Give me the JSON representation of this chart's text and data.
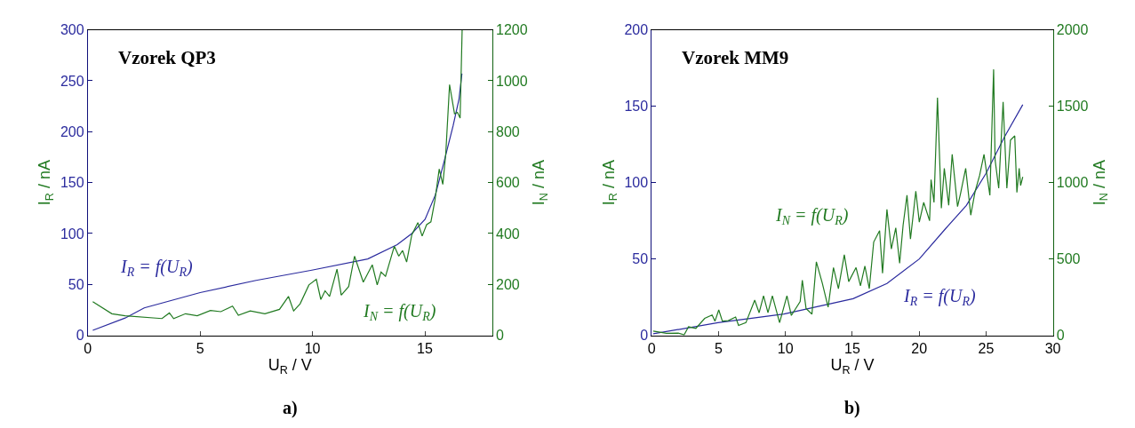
{
  "chart_data": [
    {
      "type": "line",
      "title": "Vzorek QP3",
      "xlabel": "U$_{R}$ / V",
      "ylabel": "I$_{R}$ / nA",
      "y2label": "I$_{N}$ / nA",
      "xlim": [
        0,
        18
      ],
      "xticks": [
        0,
        5,
        10,
        15
      ],
      "ylim": [
        0,
        300
      ],
      "yticks": [
        0,
        50,
        100,
        150,
        200,
        250,
        300
      ],
      "y2lim": [
        0,
        1200
      ],
      "y2ticks": [
        0,
        200,
        400,
        600,
        800,
        1000,
        1200
      ],
      "series": [
        {
          "name": "I$_{R}$ = f(U$_{R}$)",
          "color": "#2b2b9e",
          "x": [
            0.22,
            1.66,
            2.51,
            5.0,
            7.49,
            9.97,
            12.46,
            13.77,
            14.42,
            15.01,
            15.47,
            15.86,
            16.26,
            16.52,
            16.65
          ],
          "values": [
            5,
            17,
            27,
            42,
            54,
            64,
            75,
            89,
            100,
            114,
            138,
            171,
            206,
            232,
            257
          ]
        },
        {
          "name": "I$_{N}$ = f(U$_{R}$)",
          "color": "#217a21",
          "axis": "y2",
          "x": [
            0.22,
            1.07,
            1.66,
            3.3,
            3.63,
            3.82,
            4.35,
            4.87,
            5.46,
            5.92,
            6.44,
            6.7,
            7.23,
            7.88,
            8.53,
            8.93,
            9.16,
            9.45,
            9.84,
            10.17,
            10.37,
            10.56,
            10.76,
            11.09,
            11.28,
            11.61,
            11.87,
            12.26,
            12.66,
            12.88,
            13.05,
            13.25,
            13.64,
            13.84,
            14.01,
            14.19,
            14.42,
            14.69,
            14.88,
            15.08,
            15.27,
            15.45,
            15.64,
            15.8,
            15.93,
            16.1,
            16.32,
            16.45,
            16.57,
            16.66
          ],
          "values": [
            132,
            85,
            77,
            66,
            88,
            66,
            85,
            77,
            98,
            93,
            115,
            79,
            96,
            85,
            102,
            153,
            96,
            124,
            198,
            220,
            141,
            175,
            153,
            260,
            158,
            192,
            311,
            209,
            277,
            198,
            249,
            232,
            350,
            311,
            333,
            288,
            395,
            443,
            390,
            435,
            446,
            531,
            653,
            593,
            712,
            985,
            870,
            876,
            853,
            1200
          ]
        }
      ],
      "annotations": [
        "a)"
      ]
    },
    {
      "type": "line",
      "title": "Vzorek MM9",
      "xlabel": "U$_{R}$ / V",
      "ylabel": "I$_{R}$ / nA",
      "y2label": "I$_{N}$ / nA",
      "xlim": [
        0,
        30
      ],
      "xticks": [
        0,
        5,
        10,
        15,
        20,
        25,
        30
      ],
      "ylim": [
        0,
        200
      ],
      "yticks": [
        0,
        50,
        100,
        150,
        200
      ],
      "y2lim": [
        0,
        2000
      ],
      "y2ticks": [
        0,
        500,
        1000,
        1500,
        2000
      ],
      "series": [
        {
          "name": "I$_{R}$ = f(U$_{R}$)",
          "color": "#2b2b9e",
          "x": [
            0.11,
            4.95,
            9.89,
            15.06,
            17.59,
            20.01,
            21.99,
            23.53,
            25.0,
            26.39,
            27.75
          ],
          "values": [
            1,
            8.3,
            14,
            24,
            34,
            50,
            70,
            85,
            106,
            130,
            151
          ]
        },
        {
          "name": "I$_{N}$ = f(U$_{R}$)",
          "color": "#217a21",
          "axis": "y2",
          "x": [
            0.11,
            1.1,
            1.98,
            2.42,
            2.75,
            3.3,
            3.96,
            4.51,
            4.73,
            5.01,
            5.28,
            5.72,
            6.27,
            6.49,
            7.04,
            7.7,
            8.03,
            8.36,
            8.69,
            9.02,
            9.56,
            10.11,
            10.44,
            11.1,
            11.26,
            11.54,
            11.98,
            12.31,
            12.75,
            13.19,
            13.59,
            13.96,
            14.4,
            14.73,
            15.28,
            15.61,
            15.94,
            16.27,
            16.6,
            17.04,
            17.26,
            17.59,
            17.92,
            18.25,
            18.54,
            18.8,
            19.09,
            19.35,
            19.75,
            20.01,
            20.34,
            20.78,
            20.89,
            21.11,
            21.37,
            21.66,
            21.88,
            22.21,
            22.47,
            22.87,
            23.09,
            23.48,
            23.86,
            24.19,
            24.52,
            24.85,
            25.29,
            25.57,
            25.68,
            25.95,
            26.28,
            26.56,
            26.83,
            27.15,
            27.31,
            27.48,
            27.59,
            27.75
          ],
          "values": [
            28,
            13,
            15,
            4,
            56,
            46,
            111,
            133,
            93,
            167,
            93,
            96,
            120,
            65,
            83,
            231,
            148,
            259,
            148,
            259,
            83,
            259,
            130,
            222,
            361,
            176,
            139,
            481,
            343,
            185,
            444,
            306,
            528,
            352,
            444,
            324,
            454,
            306,
            611,
            685,
            407,
            824,
            565,
            704,
            472,
            722,
            917,
            630,
            944,
            741,
            870,
            750,
            1019,
            870,
            1556,
            833,
            1093,
            852,
            1185,
            843,
            926,
            1093,
            787,
            944,
            1046,
            1185,
            917,
            1741,
            1148,
            963,
            1528,
            963,
            1278,
            1306,
            935,
            1093,
            981,
            1037
          ]
        }
      ],
      "annotations": [
        "b)"
      ]
    }
  ]
}
